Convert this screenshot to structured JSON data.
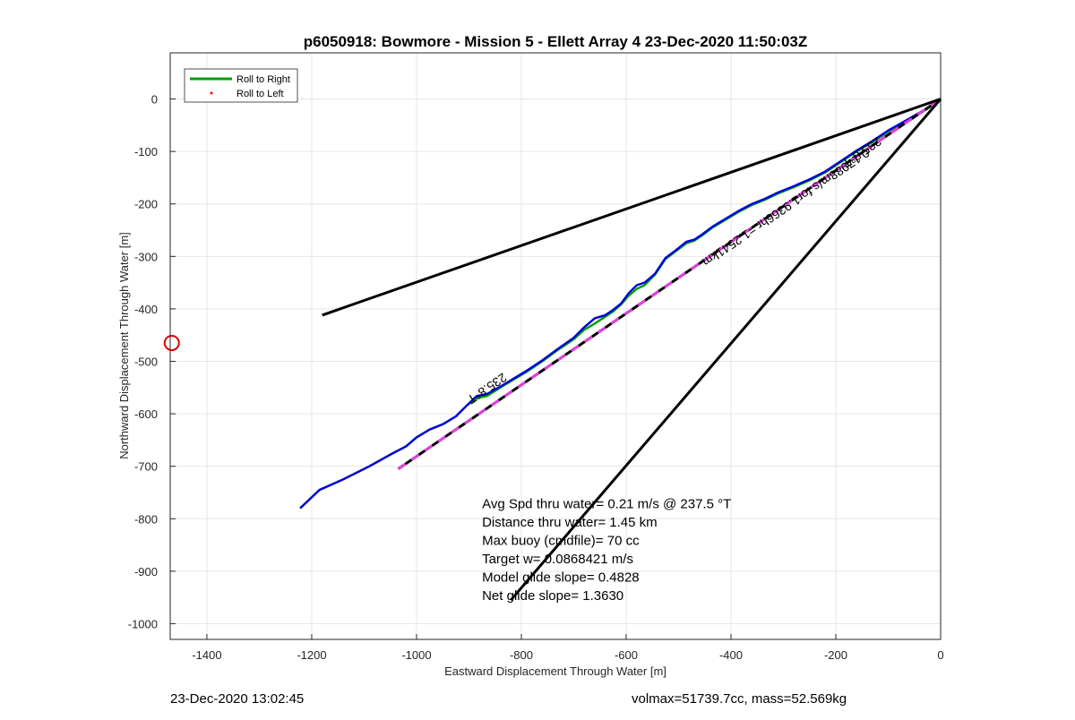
{
  "chart_data": {
    "type": "line",
    "title": "p6050918: Bowmore - Mission 5 - Ellett Array 4 23-Dec-2020 11:50:03Z",
    "xlabel": "Eastward Displacement Through Water [m]",
    "ylabel": "Northward Displacement Through Water [m]",
    "xlim": [
      -1470,
      0
    ],
    "ylim": [
      -1030,
      88
    ],
    "xticks": [
      -1400,
      -1200,
      -1000,
      -800,
      -600,
      -400,
      -200,
      0
    ],
    "yticks": [
      0,
      -100,
      -200,
      -300,
      -400,
      -500,
      -600,
      -700,
      -800,
      -900,
      -1000
    ],
    "grid": true,
    "legend_position": "top-left",
    "legend": [
      {
        "label": "Roll to Right",
        "color": "#00a000",
        "style": "line"
      },
      {
        "label": "Roll to Left",
        "color": "#ff0000",
        "style": "dot"
      }
    ],
    "series": [
      {
        "name": "Roll to Right",
        "color": "#00a000",
        "x": [
          -1222,
          -1185,
          -1140,
          -1090,
          -1045,
          -1020,
          -1000,
          -975,
          -950,
          -925,
          -905,
          -885,
          -865,
          -840,
          -815,
          -790,
          -760,
          -730,
          -700,
          -680,
          -660,
          -640,
          -625,
          -610,
          -595,
          -580,
          -565,
          -545,
          -525,
          -505,
          -485,
          -470,
          -455,
          -435,
          -410,
          -385,
          -360,
          -335,
          -310,
          -280,
          -250,
          -220,
          -190,
          -160,
          -130,
          -100,
          -70,
          -40,
          -15,
          0
        ],
        "y": [
          -780,
          -745,
          -725,
          -700,
          -675,
          -662,
          -645,
          -630,
          -620,
          -605,
          -585,
          -570,
          -566,
          -550,
          -535,
          -520,
          -500,
          -478,
          -458,
          -440,
          -428,
          -415,
          -405,
          -392,
          -375,
          -362,
          -355,
          -335,
          -305,
          -290,
          -275,
          -270,
          -260,
          -245,
          -230,
          -215,
          -202,
          -192,
          -180,
          -168,
          -155,
          -140,
          -120,
          -100,
          -82,
          -62,
          -45,
          -28,
          -12,
          0
        ]
      },
      {
        "name": "",
        "color": "#0000dd",
        "x": [
          -1222,
          -1185,
          -1140,
          -1090,
          -1045,
          -1020,
          -1000,
          -975,
          -950,
          -925,
          -905,
          -885,
          -865,
          -840,
          -815,
          -790,
          -760,
          -730,
          -700,
          -680,
          -660,
          -640,
          -625,
          -610,
          -595,
          -580,
          -565,
          -545,
          -525,
          -505,
          -485,
          -470,
          -455,
          -435,
          -410,
          -385,
          -360,
          -335,
          -310,
          -280,
          -250,
          -220,
          -190,
          -160,
          -130,
          -100,
          -70,
          -40,
          -15,
          0
        ],
        "y": [
          -780,
          -745,
          -725,
          -700,
          -675,
          -662,
          -645,
          -630,
          -620,
          -605,
          -585,
          -566,
          -562,
          -548,
          -533,
          -518,
          -498,
          -476,
          -455,
          -435,
          -418,
          -412,
          -402,
          -390,
          -370,
          -355,
          -350,
          -333,
          -303,
          -288,
          -272,
          -268,
          -258,
          -243,
          -228,
          -213,
          -200,
          -190,
          -178,
          -166,
          -153,
          -138,
          -118,
          -98,
          -80,
          -60,
          -43,
          -26,
          -11,
          0
        ]
      },
      {
        "name": "",
        "color": "#000000",
        "style": "dashed-magenta",
        "x": [
          -1035,
          0
        ],
        "y": [
          -705,
          0
        ]
      },
      {
        "name": "",
        "color": "#000000",
        "x": [
          -1180,
          0
        ],
        "y": [
          -412,
          0
        ]
      },
      {
        "name": "",
        "color": "#000000",
        "x": [
          -820,
          0
        ],
        "y": [
          -955,
          0
        ]
      }
    ],
    "markers": [
      {
        "x": -1467,
        "y": -465,
        "color": "#dd0000",
        "shape": "circle"
      }
    ],
    "annotations": [
      {
        "text": "235.8°T",
        "x": -870,
        "y": -545
      },
      {
        "text": "235.8°T",
        "x": -155,
        "y": -95
      },
      {
        "text": "0.17988m/s for1.9366hr =1.2541km",
        "x": -300,
        "y": -200
      },
      {
        "text": "Avg Spd thru water=  0.21 m/s @ 237.5 °T",
        "x": -875,
        "y": -780
      },
      {
        "text": "Distance thru water=  1.45 km",
        "x": -875,
        "y": -815
      },
      {
        "text": "Max buoy (cmdfile)= 70 cc",
        "x": -875,
        "y": -850
      },
      {
        "text": "Target w= 0.0868421 m/s",
        "x": -875,
        "y": -885
      },
      {
        "text": "Model glide slope= 0.4828",
        "x": -875,
        "y": -920
      },
      {
        "text": "Net glide slope= 1.3630",
        "x": -875,
        "y": -955
      }
    ]
  },
  "footer": {
    "timestamp": "23-Dec-2020 13:02:45",
    "summary": "volmax=51739.7cc, mass=52.569kg"
  }
}
